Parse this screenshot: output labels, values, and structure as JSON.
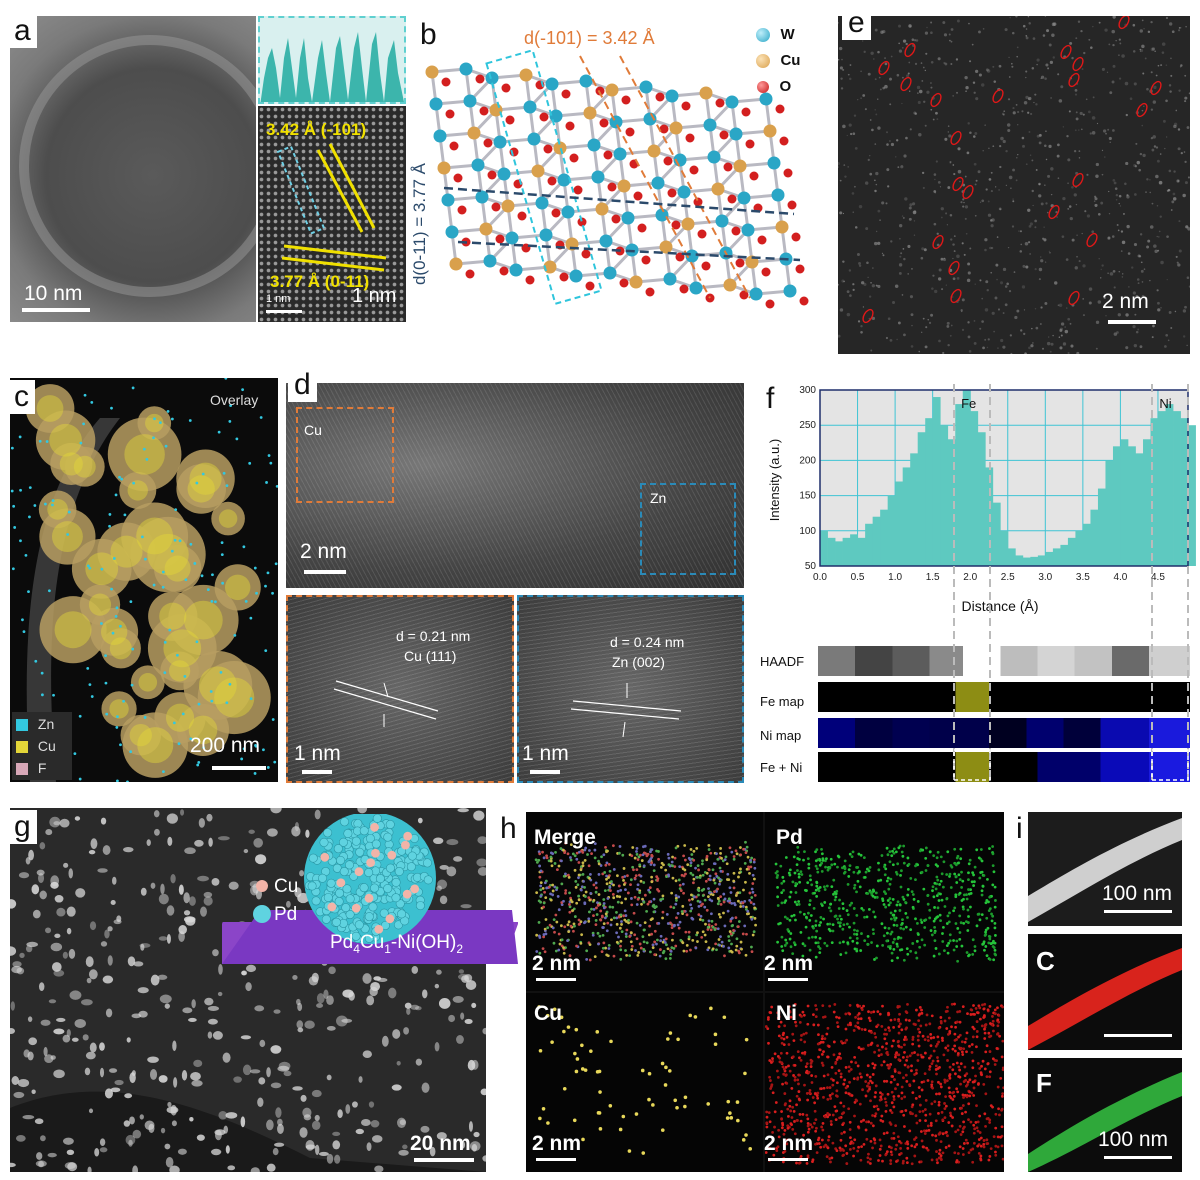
{
  "panels": {
    "a": {
      "letter": "a",
      "scalebar_main": "10 nm",
      "scalebar_inset_small": "1 nm",
      "scalebar_inset": "1 nm",
      "label_top": "3.42 Å (-101)",
      "label_bottom": "3.77 Å (0-11)"
    },
    "b": {
      "letter": "b",
      "d_top": "d(-101) = 3.42 Å",
      "d_side": "d(0-11) = 3.77 Å",
      "legend": [
        {
          "symbol": "W",
          "color": "#2aa6c6"
        },
        {
          "symbol": "Cu",
          "color": "#d9a04c"
        },
        {
          "symbol": "O",
          "color": "#d31f1f"
        }
      ]
    },
    "c": {
      "letter": "c",
      "overlay": "Overlay",
      "scalebar": "200 nm",
      "legend": [
        {
          "label": "Zn",
          "color": "#33c8e0"
        },
        {
          "label": "Cu",
          "color": "#e3d639"
        },
        {
          "label": "F",
          "color": "#d8a8b8"
        }
      ]
    },
    "d": {
      "letter": "d",
      "scalebar_main": "2 nm",
      "box_cu": "Cu",
      "box_zn": "Zn",
      "left_inset": {
        "d": "d = 0.21 nm",
        "plane": "Cu (111)",
        "scalebar": "1 nm"
      },
      "right_inset": {
        "d": "d = 0.24 nm",
        "plane": "Zn (002)",
        "scalebar": "1 nm"
      }
    },
    "e": {
      "letter": "e",
      "scalebar": "2 nm"
    },
    "f": {
      "letter": "f",
      "peak_labels": [
        "Fe",
        "Ni"
      ],
      "maps": [
        "HAADF",
        "Fe map",
        "Ni map",
        "Fe + Ni"
      ]
    },
    "g": {
      "letter": "g",
      "scalebar": "20 nm",
      "legend_cu": "Cu",
      "legend_pd": "Pd",
      "caption_pre": "Pd",
      "caption_sub1": "4",
      "caption_mid": "Cu",
      "caption_sub2": "1",
      "caption_post": "-Ni(OH)",
      "caption_sub3": "2"
    },
    "h": {
      "letter": "h",
      "tiles": [
        {
          "label": "Merge",
          "scalebar": "2 nm"
        },
        {
          "label": "Pd",
          "scalebar": "2 nm"
        },
        {
          "label": "Cu",
          "scalebar": "2 nm"
        },
        {
          "label": "Ni",
          "scalebar": "2 nm"
        }
      ]
    },
    "i": {
      "letter": "i",
      "tiles": [
        {
          "label": "",
          "scalebar": "100 nm"
        },
        {
          "label": "C",
          "scalebar": ""
        },
        {
          "label": "F",
          "scalebar": "100 nm"
        }
      ]
    }
  },
  "chart_data": {
    "type": "bar",
    "xlabel": "Distance (Å)",
    "ylabel": "Intensity (a.u.)",
    "xlim": [
      0,
      5
    ],
    "ylim": [
      50,
      300
    ],
    "xticks": [
      "0.0",
      "0.5",
      "1.0",
      "1.5",
      "2.0",
      "2.5",
      "3.0",
      "3.5",
      "4.0",
      "4.5"
    ],
    "yticks": [
      "50",
      "100",
      "150",
      "200",
      "250",
      "300"
    ],
    "grid": true,
    "bar_color": "#5ec9c0",
    "annotations": [
      {
        "text": "Fe",
        "x": 1.98
      },
      {
        "text": "Ni",
        "x": 4.6
      }
    ],
    "x": [
      0.05,
      0.15,
      0.25,
      0.35,
      0.45,
      0.55,
      0.65,
      0.75,
      0.85,
      0.95,
      1.05,
      1.15,
      1.25,
      1.35,
      1.45,
      1.55,
      1.65,
      1.75,
      1.85,
      1.95,
      2.05,
      2.15,
      2.25,
      2.35,
      2.45,
      2.55,
      2.65,
      2.75,
      2.85,
      2.95,
      3.05,
      3.15,
      3.25,
      3.35,
      3.45,
      3.55,
      3.65,
      3.75,
      3.85,
      3.95,
      4.05,
      4.15,
      4.25,
      4.35,
      4.45,
      4.55,
      4.65,
      4.75,
      4.85,
      4.95
    ],
    "values": [
      100,
      90,
      85,
      90,
      95,
      90,
      110,
      120,
      130,
      150,
      170,
      190,
      210,
      240,
      260,
      290,
      250,
      230,
      280,
      300,
      270,
      240,
      190,
      140,
      100,
      75,
      65,
      62,
      63,
      65,
      70,
      75,
      80,
      90,
      100,
      110,
      130,
      160,
      200,
      220,
      230,
      220,
      210,
      230,
      260,
      270,
      280,
      270,
      260,
      250
    ]
  }
}
